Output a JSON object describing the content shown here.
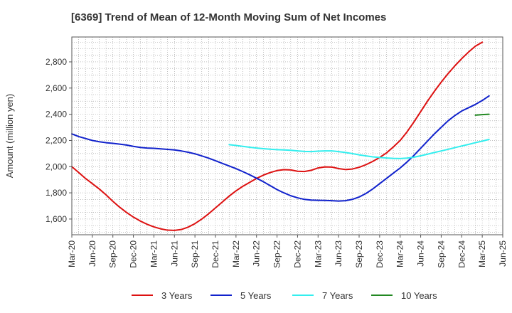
{
  "title": "[6369]  Trend of Mean of 12-Month Moving Sum of Net Incomes",
  "chart_data": {
    "type": "line",
    "title": "[6369]  Trend of Mean of 12-Month Moving Sum of Net Incomes",
    "xlabel": "",
    "ylabel": "Amount (million yen)",
    "x_ticks": [
      "Mar-20",
      "Jun-20",
      "Sep-20",
      "Dec-20",
      "Mar-21",
      "Jun-21",
      "Sep-21",
      "Dec-21",
      "Mar-22",
      "Jun-22",
      "Sep-22",
      "Dec-22",
      "Mar-23",
      "Jun-23",
      "Sep-23",
      "Dec-23",
      "Mar-24",
      "Jun-24",
      "Sep-24",
      "Dec-24",
      "Mar-25",
      "Jun-25"
    ],
    "x_range": [
      "Mar-20",
      "Jun-25"
    ],
    "ylim": [
      1480,
      2990
    ],
    "y_ticks": [
      1600,
      1800,
      2000,
      2200,
      2400,
      2600,
      2800
    ],
    "y_tick_labels": [
      "1,600",
      "1,800",
      "2,000",
      "2,200",
      "2,400",
      "2,600",
      "2,800"
    ],
    "grid": true,
    "legend_position": "bottom",
    "series": [
      {
        "name": "3 Years",
        "color": "#dd1111",
        "points": [
          [
            "Mar-20",
            2000
          ],
          [
            "Apr-20",
            1955
          ],
          [
            "May-20",
            1910
          ],
          [
            "Jun-20",
            1870
          ],
          [
            "Jul-20",
            1830
          ],
          [
            "Aug-20",
            1785
          ],
          [
            "Sep-20",
            1735
          ],
          [
            "Oct-20",
            1690
          ],
          [
            "Nov-20",
            1650
          ],
          [
            "Dec-20",
            1615
          ],
          [
            "Jan-21",
            1585
          ],
          [
            "Feb-21",
            1560
          ],
          [
            "Mar-21",
            1540
          ],
          [
            "Apr-21",
            1525
          ],
          [
            "May-21",
            1515
          ],
          [
            "Jun-21",
            1513
          ],
          [
            "Jul-21",
            1520
          ],
          [
            "Aug-21",
            1538
          ],
          [
            "Sep-21",
            1565
          ],
          [
            "Oct-21",
            1600
          ],
          [
            "Nov-21",
            1640
          ],
          [
            "Dec-21",
            1685
          ],
          [
            "Jan-22",
            1730
          ],
          [
            "Feb-22",
            1775
          ],
          [
            "Mar-22",
            1815
          ],
          [
            "Apr-22",
            1850
          ],
          [
            "May-22",
            1880
          ],
          [
            "Jun-22",
            1910
          ],
          [
            "Jul-22",
            1935
          ],
          [
            "Aug-22",
            1955
          ],
          [
            "Sep-22",
            1970
          ],
          [
            "Oct-22",
            1977
          ],
          [
            "Nov-22",
            1975
          ],
          [
            "Dec-22",
            1965
          ],
          [
            "Jan-23",
            1963
          ],
          [
            "Feb-23",
            1972
          ],
          [
            "Mar-23",
            1990
          ],
          [
            "Apr-23",
            1998
          ],
          [
            "May-23",
            1997
          ],
          [
            "Jun-23",
            1985
          ],
          [
            "Jul-23",
            1978
          ],
          [
            "Aug-23",
            1982
          ],
          [
            "Sep-23",
            1995
          ],
          [
            "Oct-23",
            2015
          ],
          [
            "Nov-23",
            2040
          ],
          [
            "Dec-23",
            2070
          ],
          [
            "Jan-24",
            2105
          ],
          [
            "Feb-24",
            2150
          ],
          [
            "Mar-24",
            2200
          ],
          [
            "Apr-24",
            2265
          ],
          [
            "May-24",
            2340
          ],
          [
            "Jun-24",
            2420
          ],
          [
            "Jul-24",
            2500
          ],
          [
            "Aug-24",
            2575
          ],
          [
            "Sep-24",
            2645
          ],
          [
            "Oct-24",
            2710
          ],
          [
            "Nov-24",
            2770
          ],
          [
            "Dec-24",
            2825
          ],
          [
            "Jan-25",
            2875
          ],
          [
            "Feb-25",
            2920
          ],
          [
            "Mar-25",
            2950
          ]
        ]
      },
      {
        "name": "5 Years",
        "color": "#1122cc",
        "points": [
          [
            "Mar-20",
            2250
          ],
          [
            "Apr-20",
            2230
          ],
          [
            "May-20",
            2215
          ],
          [
            "Jun-20",
            2200
          ],
          [
            "Jul-20",
            2190
          ],
          [
            "Aug-20",
            2183
          ],
          [
            "Sep-20",
            2178
          ],
          [
            "Oct-20",
            2172
          ],
          [
            "Nov-20",
            2165
          ],
          [
            "Dec-20",
            2155
          ],
          [
            "Jan-21",
            2147
          ],
          [
            "Feb-21",
            2142
          ],
          [
            "Mar-21",
            2140
          ],
          [
            "Apr-21",
            2136
          ],
          [
            "May-21",
            2132
          ],
          [
            "Jun-21",
            2128
          ],
          [
            "Jul-21",
            2120
          ],
          [
            "Aug-21",
            2110
          ],
          [
            "Sep-21",
            2098
          ],
          [
            "Oct-21",
            2082
          ],
          [
            "Nov-21",
            2065
          ],
          [
            "Dec-21",
            2045
          ],
          [
            "Jan-22",
            2025
          ],
          [
            "Feb-22",
            2005
          ],
          [
            "Mar-22",
            1985
          ],
          [
            "Apr-22",
            1962
          ],
          [
            "May-22",
            1938
          ],
          [
            "Jun-22",
            1912
          ],
          [
            "Jul-22",
            1885
          ],
          [
            "Aug-22",
            1855
          ],
          [
            "Sep-22",
            1825
          ],
          [
            "Oct-22",
            1800
          ],
          [
            "Nov-22",
            1778
          ],
          [
            "Dec-22",
            1762
          ],
          [
            "Jan-23",
            1750
          ],
          [
            "Feb-23",
            1745
          ],
          [
            "Mar-23",
            1743
          ],
          [
            "Apr-23",
            1742
          ],
          [
            "May-23",
            1740
          ],
          [
            "Jun-23",
            1737
          ],
          [
            "Jul-23",
            1740
          ],
          [
            "Aug-23",
            1750
          ],
          [
            "Sep-23",
            1768
          ],
          [
            "Oct-23",
            1795
          ],
          [
            "Nov-23",
            1830
          ],
          [
            "Dec-23",
            1870
          ],
          [
            "Jan-24",
            1910
          ],
          [
            "Feb-24",
            1950
          ],
          [
            "Mar-24",
            1990
          ],
          [
            "Apr-24",
            2035
          ],
          [
            "May-24",
            2085
          ],
          [
            "Jun-24",
            2140
          ],
          [
            "Jul-24",
            2195
          ],
          [
            "Aug-24",
            2250
          ],
          [
            "Sep-24",
            2300
          ],
          [
            "Oct-24",
            2350
          ],
          [
            "Nov-24",
            2390
          ],
          [
            "Dec-24",
            2425
          ],
          [
            "Jan-25",
            2450
          ],
          [
            "Feb-25",
            2475
          ],
          [
            "Mar-25",
            2505
          ],
          [
            "Apr-25",
            2540
          ]
        ]
      },
      {
        "name": "7 Years",
        "color": "#33eeee",
        "points": [
          [
            "Feb-22",
            2168
          ],
          [
            "Mar-22",
            2162
          ],
          [
            "Apr-22",
            2155
          ],
          [
            "May-22",
            2148
          ],
          [
            "Jun-22",
            2142
          ],
          [
            "Jul-22",
            2137
          ],
          [
            "Aug-22",
            2133
          ],
          [
            "Sep-22",
            2130
          ],
          [
            "Oct-22",
            2128
          ],
          [
            "Nov-22",
            2125
          ],
          [
            "Dec-22",
            2120
          ],
          [
            "Jan-23",
            2116
          ],
          [
            "Feb-23",
            2115
          ],
          [
            "Mar-23",
            2118
          ],
          [
            "Apr-23",
            2120
          ],
          [
            "May-23",
            2120
          ],
          [
            "Jun-23",
            2115
          ],
          [
            "Jul-23",
            2108
          ],
          [
            "Aug-23",
            2100
          ],
          [
            "Sep-23",
            2090
          ],
          [
            "Oct-23",
            2082
          ],
          [
            "Nov-23",
            2075
          ],
          [
            "Dec-23",
            2070
          ],
          [
            "Jan-24",
            2066
          ],
          [
            "Feb-24",
            2063
          ],
          [
            "Mar-24",
            2062
          ],
          [
            "Apr-24",
            2065
          ],
          [
            "May-24",
            2072
          ],
          [
            "Jun-24",
            2083
          ],
          [
            "Jul-24",
            2095
          ],
          [
            "Aug-24",
            2108
          ],
          [
            "Sep-24",
            2120
          ],
          [
            "Oct-24",
            2132
          ],
          [
            "Nov-24",
            2145
          ],
          [
            "Dec-24",
            2158
          ],
          [
            "Jan-25",
            2170
          ],
          [
            "Feb-25",
            2183
          ],
          [
            "Mar-25",
            2195
          ],
          [
            "Apr-25",
            2208
          ]
        ]
      },
      {
        "name": "10 Years",
        "color": "#228822",
        "points": [
          [
            "Feb-25",
            2393
          ],
          [
            "Mar-25",
            2397
          ],
          [
            "Apr-25",
            2400
          ]
        ]
      }
    ]
  }
}
